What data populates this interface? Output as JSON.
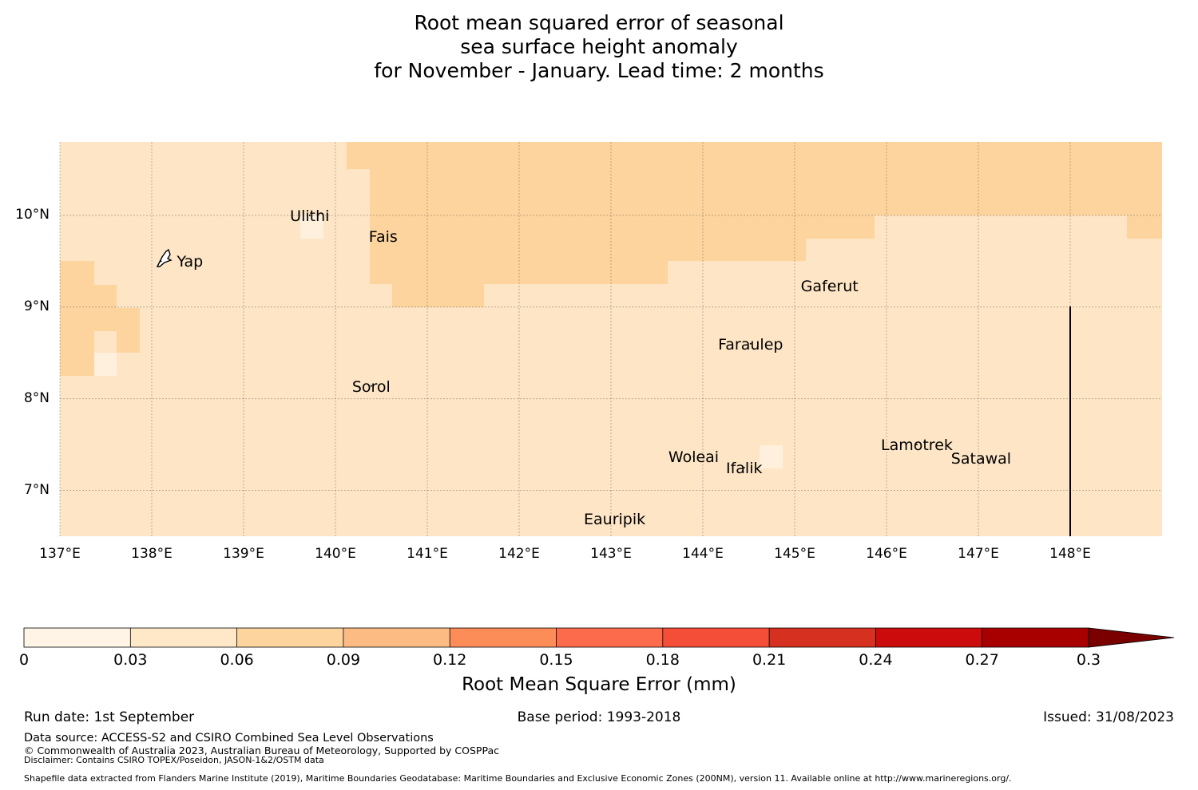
{
  "title": {
    "line1": "Root mean squared error of seasonal",
    "line2": "sea surface height anomaly",
    "line3": "for November - January. Lead time: 2 months"
  },
  "map": {
    "lon_range": [
      137,
      149
    ],
    "lat_range": [
      6.5,
      10.8
    ],
    "lon_ticks": [
      "137°E",
      "138°E",
      "139°E",
      "140°E",
      "141°E",
      "142°E",
      "143°E",
      "144°E",
      "145°E",
      "146°E",
      "147°E",
      "148°E"
    ],
    "lat_ticks": [
      "10°N",
      "9°N",
      "8°N",
      "7°N"
    ],
    "places": [
      {
        "name": "Yap",
        "lon": 138.1,
        "lat": 9.5
      },
      {
        "name": "Ulithi",
        "lon": 139.72,
        "lat": 10.0
      },
      {
        "name": "Fais",
        "lon": 140.52,
        "lat": 9.77
      },
      {
        "name": "Gaferut",
        "lon": 145.38,
        "lat": 9.23
      },
      {
        "name": "Faraulep",
        "lon": 144.52,
        "lat": 8.6
      },
      {
        "name": "Sorol",
        "lon": 140.39,
        "lat": 8.14
      },
      {
        "name": "Woleai",
        "lon": 143.9,
        "lat": 7.37
      },
      {
        "name": "Ifalik",
        "lon": 144.45,
        "lat": 7.25
      },
      {
        "name": "Lamotrek",
        "lon": 146.33,
        "lat": 7.5
      },
      {
        "name": "Satawal",
        "lon": 147.03,
        "lat": 7.35
      },
      {
        "name": "Eauripik",
        "lon": 143.04,
        "lat": 6.69
      }
    ],
    "colors": {
      "bin_0_003": "#fef0dd",
      "bin_003_006": "#fde5c6",
      "bin_006_009": "#fdd49e"
    }
  },
  "colorbar": {
    "label": "Root Mean Square Error (mm)",
    "ticks": [
      "0",
      "0.03",
      "0.06",
      "0.09",
      "0.12",
      "0.15",
      "0.18",
      "0.21",
      "0.24",
      "0.27",
      "0.3"
    ],
    "colors": [
      "#fff4e6",
      "#fee8c8",
      "#fdd49e",
      "#fdbb84",
      "#fc8d59",
      "#fc6c4c",
      "#f44d38",
      "#d63020",
      "#cc0c0c",
      "#a80000",
      "#7a0000"
    ]
  },
  "footer": {
    "run_date": "Run date: 1st September",
    "base_period": "Base period: 1993-2018",
    "issued": "Issued: 31/08/2023",
    "data_source": "Data source: ACCESS-S2 and CSIRO Combined Sea Level Observations",
    "copyright": "© Commonwealth of Australia 2023, Australian Bureau of Meteorology, Supported by COSPPac",
    "disclaimer": "Disclaimer: Contains CSIRO TOPEX/Poseidon, JASON-1&2/OSTM data",
    "shapefile": "Shapefile data extracted from Flanders Marine Institute (2019), Maritime Boundaries Geodatabase: Maritime Boundaries and Exclusive Economic Zones (200NM), version 11. Available online at http://www.marineregions.org/."
  }
}
